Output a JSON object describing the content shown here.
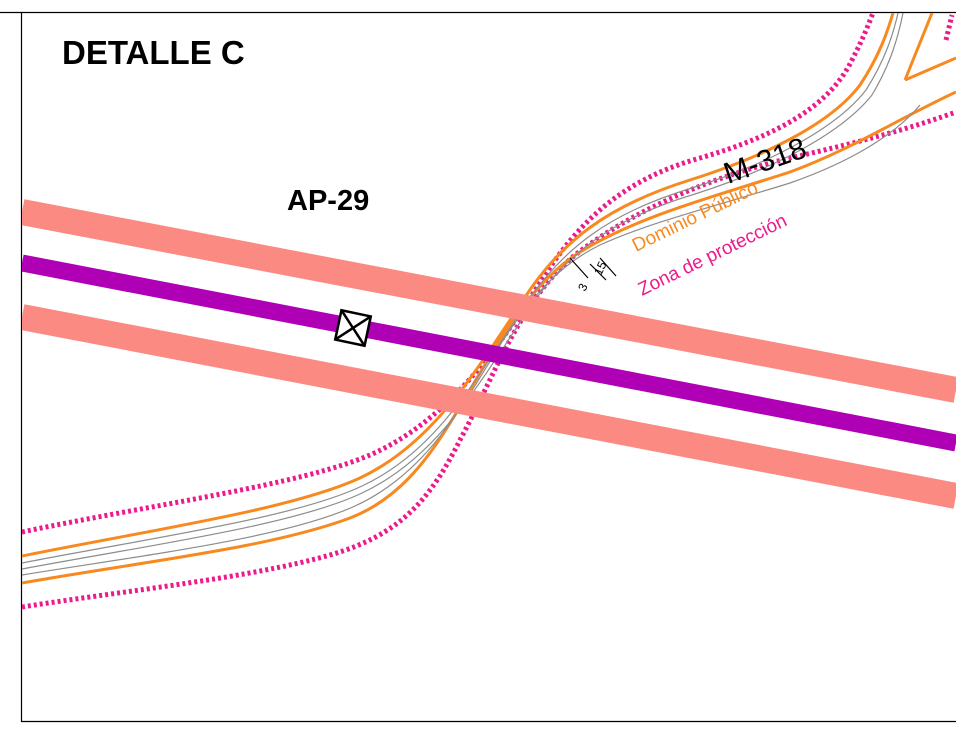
{
  "title": "DETALLE C",
  "line_label": "AP-29",
  "road": {
    "name": "M-318",
    "dominio_label": "Dominio Público",
    "proteccion_label": "Zona de protección",
    "dim_inner": "3",
    "dim_outer": "15"
  },
  "colors": {
    "corridor": "#fb8a82",
    "line_axis": "#b000b6",
    "dominio": "#f7891f",
    "proteccion": "#ec1a8c",
    "road_edge": "#8c8c8c",
    "frame": "#000000"
  },
  "icons": {
    "support": "tower-crossbox-icon"
  }
}
